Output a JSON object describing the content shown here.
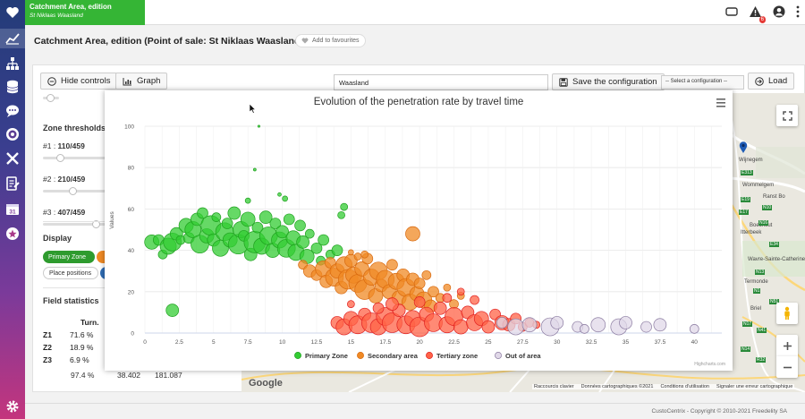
{
  "app": {
    "tab_title": "Catchment Area, edition",
    "tab_subtitle": "St Niklaas Waasland",
    "notification_count": "6"
  },
  "header": {
    "title": "Catchment Area, edition (Point of sale: St Niklaas Waasland)",
    "favourites_label": "Add to favourites"
  },
  "toolbar": {
    "hide_controls_label": "Hide controls",
    "graph_label": "Graph",
    "config_name_value": "Waasland",
    "save_config_label": "Save the configuration",
    "select_config_value": "-- Select a configuration --",
    "load_label": "Load"
  },
  "controls": {
    "zone_thresholds_title": "Zone thresholds",
    "zones": [
      {
        "label": "#1 :",
        "value": "110/459",
        "fraction": 0.24
      },
      {
        "label": "#2 :",
        "value": "210/459",
        "fraction": 0.46
      },
      {
        "label": "#3 :",
        "value": "407/459",
        "fraction": 0.89
      }
    ],
    "display_title": "Display",
    "display_pills": [
      {
        "label": "Primary Zone",
        "color": "#2e9b2e"
      },
      {
        "label": "",
        "color": "#f08a24"
      },
      {
        "label": "Place positions",
        "color": ""
      }
    ],
    "field_statistics_title": "Field statistics",
    "stats_header": "Turn.",
    "stats_rows": [
      {
        "zone": "Z1",
        "pct": "71.6 %"
      },
      {
        "zone": "Z2",
        "pct": "18.9 %"
      },
      {
        "zone": "Z3",
        "pct": "6.9 %"
      }
    ],
    "stats_total": {
      "pct": "97.4 %",
      "v1": "38.402",
      "v2": "181.087"
    }
  },
  "map": {
    "place_labels": [
      "Wijnegem",
      "Wommelgem",
      "Ranst Bo",
      "Boechout",
      "Itterbeek",
      "Wavre-Sainte-Catherine",
      "Termonde",
      "Briel",
      "E313",
      "E19",
      "N10",
      "N14",
      "E34",
      "N13",
      "N1",
      "E17",
      "N16",
      "N17",
      "N41",
      "N15",
      "N51",
      "R32"
    ],
    "google_logo": "Google",
    "attribution": [
      "Raccourcis clavier",
      "Données cartographiques ©2021",
      "Conditions d'utilisation",
      "Signaler une erreur cartographique"
    ]
  },
  "chart_data": {
    "type": "scatter",
    "title": "Evolution of the penetration rate by travel time",
    "xlabel": "",
    "ylabel": "Values",
    "xlim": [
      0,
      42
    ],
    "ylim": [
      0,
      100
    ],
    "x_ticks": [
      "0",
      "2.5",
      "5",
      "7.5",
      "10",
      "12.5",
      "15",
      "17.5",
      "20",
      "22.5",
      "25",
      "27.5",
      "30",
      "32.5",
      "35",
      "37.5",
      "40"
    ],
    "y_ticks": [
      "0",
      "20",
      "40",
      "60",
      "80",
      "100"
    ],
    "credit": "Highcharts.com",
    "series": [
      {
        "name": "Primary Zone",
        "color": "#33cc33",
        "points": [
          [
            0.5,
            44,
            0.8
          ],
          [
            1,
            45,
            0.6
          ],
          [
            1.3,
            38,
            0.5
          ],
          [
            1.7,
            42,
            0.9
          ],
          [
            2,
            44,
            1.0
          ],
          [
            2.3,
            48,
            0.7
          ],
          [
            2.6,
            45,
            0.5
          ],
          [
            3,
            52,
            0.8
          ],
          [
            3.2,
            46,
            0.6
          ],
          [
            3.5,
            50,
            0.9
          ],
          [
            3.8,
            55,
            0.7
          ],
          [
            4,
            43,
            1.0
          ],
          [
            4.2,
            58,
            0.6
          ],
          [
            4.5,
            47,
            0.8
          ],
          [
            4.8,
            52,
            1.1
          ],
          [
            5,
            45,
            0.7
          ],
          [
            5.2,
            56,
            0.5
          ],
          [
            5.5,
            41,
            0.9
          ],
          [
            5.8,
            49,
            1.0
          ],
          [
            6,
            53,
            0.6
          ],
          [
            6.2,
            45,
            0.8
          ],
          [
            6.5,
            58,
            0.7
          ],
          [
            6.8,
            43,
            1.1
          ],
          [
            7,
            50,
            0.9
          ],
          [
            7.2,
            47,
            0.6
          ],
          [
            7.5,
            55,
            0.8
          ],
          [
            7.7,
            38,
            0.7
          ],
          [
            8,
            44,
            1.2
          ],
          [
            8.2,
            51,
            0.6
          ],
          [
            8.5,
            42,
            0.9
          ],
          [
            8.8,
            56,
            0.7
          ],
          [
            9,
            47,
            1.0
          ],
          [
            9.3,
            40,
            0.8
          ],
          [
            9.5,
            53,
            0.6
          ],
          [
            9.8,
            45,
            0.9
          ],
          [
            10,
            49,
            0.7
          ],
          [
            10.3,
            41,
            1.0
          ],
          [
            10.5,
            55,
            0.6
          ],
          [
            10.8,
            46,
            0.8
          ],
          [
            11,
            39,
            0.9
          ],
          [
            11.3,
            52,
            0.6
          ],
          [
            11.5,
            44,
            0.7
          ],
          [
            11.8,
            37,
            0.8
          ],
          [
            12,
            48,
            0.5
          ],
          [
            12.5,
            41,
            0.6
          ],
          [
            12.8,
            35,
            0.5
          ],
          [
            13,
            45,
            0.6
          ],
          [
            13.5,
            38,
            0.5
          ],
          [
            14,
            40,
            0.6
          ],
          [
            14.3,
            57,
            0.4
          ],
          [
            14.5,
            61,
            0.4
          ],
          [
            7.5,
            64,
            0.3
          ],
          [
            9.8,
            67,
            0.2
          ],
          [
            10.2,
            65,
            0.3
          ],
          [
            2,
            11,
            0.7
          ],
          [
            8,
            79,
            0.15
          ],
          [
            8.3,
            100,
            0.1
          ]
        ]
      },
      {
        "name": "Secondary area",
        "color": "#f08a24",
        "points": [
          [
            11.5,
            33,
            0.5
          ],
          [
            12,
            30,
            0.7
          ],
          [
            12.5,
            28,
            0.6
          ],
          [
            13,
            31,
            0.9
          ],
          [
            13.2,
            25,
            0.7
          ],
          [
            13.5,
            34,
            0.6
          ],
          [
            13.8,
            27,
            1.0
          ],
          [
            14,
            30,
            0.8
          ],
          [
            14.3,
            22,
            0.7
          ],
          [
            14.5,
            33,
            0.9
          ],
          [
            14.8,
            26,
            1.1
          ],
          [
            15,
            35,
            0.7
          ],
          [
            15.2,
            28,
            0.9
          ],
          [
            15.5,
            24,
            1.0
          ],
          [
            15.8,
            31,
            0.8
          ],
          [
            16,
            21,
            1.1
          ],
          [
            16.2,
            36,
            0.6
          ],
          [
            16.5,
            27,
            0.9
          ],
          [
            16.8,
            18,
            0.8
          ],
          [
            17,
            30,
            1.0
          ],
          [
            17.2,
            23,
            0.7
          ],
          [
            17.5,
            26,
            1.0
          ],
          [
            17.8,
            20,
            0.8
          ],
          [
            18,
            33,
            0.6
          ],
          [
            18.3,
            25,
            0.9
          ],
          [
            18.5,
            17,
            0.8
          ],
          [
            18.8,
            28,
            0.7
          ],
          [
            19,
            22,
            1.0
          ],
          [
            19.3,
            15,
            0.9
          ],
          [
            19.5,
            26,
            0.7
          ],
          [
            19.8,
            19,
            0.8
          ],
          [
            20,
            24,
            0.6
          ],
          [
            20.3,
            16,
            0.9
          ],
          [
            20.5,
            28,
            0.5
          ],
          [
            20.8,
            13,
            0.7
          ],
          [
            21,
            20,
            0.6
          ],
          [
            21.5,
            17,
            0.5
          ],
          [
            22,
            22,
            0.4
          ],
          [
            22.5,
            14,
            0.5
          ],
          [
            23,
            18,
            0.4
          ],
          [
            19.5,
            48,
            0.8
          ],
          [
            16,
            38,
            0.4
          ],
          [
            15,
            39,
            0.3
          ],
          [
            15.5,
            37,
            0.4
          ]
        ]
      },
      {
        "name": "Tertiary zone",
        "color": "#ff6347",
        "points": [
          [
            14,
            5,
            0.7
          ],
          [
            14.5,
            3,
            0.9
          ],
          [
            15,
            7,
            0.8
          ],
          [
            15.5,
            4,
            1.0
          ],
          [
            16,
            9,
            0.7
          ],
          [
            16.5,
            5,
            1.1
          ],
          [
            17,
            3,
            0.9
          ],
          [
            17.5,
            8,
            1.0
          ],
          [
            18,
            5,
            1.1
          ],
          [
            18.5,
            11,
            0.7
          ],
          [
            19,
            4,
            1.0
          ],
          [
            19.5,
            7,
            0.9
          ],
          [
            20,
            3,
            1.1
          ],
          [
            20.5,
            9,
            0.8
          ],
          [
            21,
            5,
            1.0
          ],
          [
            21.5,
            12,
            0.7
          ],
          [
            22,
            4,
            0.9
          ],
          [
            22.5,
            8,
            1.0
          ],
          [
            23,
            3,
            0.8
          ],
          [
            23.5,
            10,
            0.7
          ],
          [
            24,
            5,
            0.9
          ],
          [
            24.5,
            7,
            0.8
          ],
          [
            25,
            3,
            0.7
          ],
          [
            25.5,
            9,
            0.6
          ],
          [
            26,
            5,
            0.8
          ],
          [
            26.5,
            4,
            0.7
          ],
          [
            27,
            7,
            0.6
          ],
          [
            27.5,
            3,
            0.5
          ],
          [
            28,
            5,
            0.5
          ],
          [
            28.5,
            4,
            0.4
          ],
          [
            17,
            12,
            0.6
          ],
          [
            18,
            14,
            0.7
          ],
          [
            20,
            15,
            0.6
          ],
          [
            22,
            17,
            0.5
          ],
          [
            23,
            20,
            0.4
          ],
          [
            24,
            16,
            0.5
          ],
          [
            15,
            14,
            0.4
          ]
        ]
      },
      {
        "name": "Out of area",
        "color": "#e0d8e8",
        "points": [
          [
            27,
            3,
            0.9
          ],
          [
            28,
            4,
            0.8
          ],
          [
            29.5,
            3,
            1.0
          ],
          [
            30,
            5,
            0.7
          ],
          [
            31.5,
            3,
            0.6
          ],
          [
            33,
            4,
            0.8
          ],
          [
            34.5,
            3,
            0.9
          ],
          [
            35,
            5,
            0.7
          ],
          [
            36.5,
            3,
            0.6
          ],
          [
            37.5,
            4,
            0.7
          ],
          [
            40,
            2,
            0.5
          ],
          [
            26,
            5,
            0.6
          ],
          [
            32,
            2,
            0.5
          ]
        ]
      }
    ]
  }
}
